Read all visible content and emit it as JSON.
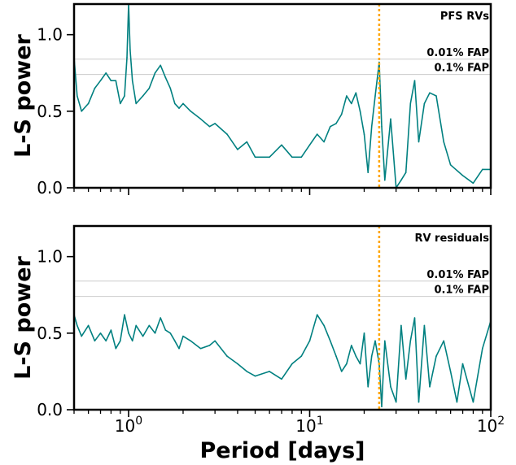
{
  "chart_data": {
    "type": "line",
    "xscale": "log",
    "xlim": [
      0.5,
      100
    ],
    "ylim": [
      0,
      1.2
    ],
    "xlabel": "Period [days]",
    "x_tick_labels": [
      {
        "value": 1,
        "base": "10",
        "exp": "0"
      },
      {
        "value": 10,
        "base": "10",
        "exp": "1"
      },
      {
        "value": 100,
        "base": "10",
        "exp": "2"
      }
    ],
    "y_ticks": [
      0.0,
      0.5,
      1.0
    ],
    "y_tick_labels": [
      "0.0",
      "0.5",
      "1.0"
    ],
    "colors": {
      "series": "#008080",
      "marker": "#ffa500",
      "fap": "#cccccc"
    },
    "panels": [
      {
        "id": "top",
        "ylabel": "L-S power",
        "annotation": "PFS RVs",
        "fap_lines": [
          {
            "label": "0.01% FAP",
            "value": 0.84
          },
          {
            "label": "0.1% FAP",
            "value": 0.74
          }
        ],
        "marker_period": 24.2,
        "series": {
          "x": [
            0.5,
            0.52,
            0.55,
            0.6,
            0.65,
            0.7,
            0.75,
            0.8,
            0.85,
            0.9,
            0.95,
            0.98,
            1.0,
            1.02,
            1.05,
            1.1,
            1.2,
            1.3,
            1.4,
            1.5,
            1.6,
            1.7,
            1.8,
            1.9,
            2.0,
            2.2,
            2.5,
            2.8,
            3.0,
            3.5,
            4.0,
            4.5,
            5.0,
            6.0,
            7.0,
            8.0,
            9.0,
            10.0,
            11.0,
            12.0,
            13.0,
            14.0,
            15.0,
            16.0,
            17.0,
            18.0,
            19.0,
            20.0,
            21.0,
            22.0,
            23.0,
            24.2,
            25.0,
            26.0,
            28.0,
            30.0,
            32.0,
            34.0,
            36.0,
            38.0,
            40.0,
            43.0,
            46.0,
            50.0,
            55.0,
            60.0,
            70.0,
            80.0,
            90.0,
            100.0
          ],
          "y": [
            0.85,
            0.6,
            0.5,
            0.55,
            0.65,
            0.7,
            0.75,
            0.7,
            0.7,
            0.55,
            0.6,
            0.85,
            1.2,
            0.9,
            0.7,
            0.55,
            0.6,
            0.65,
            0.75,
            0.8,
            0.72,
            0.65,
            0.55,
            0.52,
            0.55,
            0.5,
            0.45,
            0.4,
            0.42,
            0.35,
            0.25,
            0.3,
            0.2,
            0.2,
            0.28,
            0.2,
            0.2,
            0.28,
            0.35,
            0.3,
            0.4,
            0.42,
            0.48,
            0.6,
            0.55,
            0.62,
            0.5,
            0.35,
            0.1,
            0.4,
            0.6,
            0.82,
            0.4,
            0.05,
            0.45,
            0.0,
            0.05,
            0.1,
            0.55,
            0.7,
            0.3,
            0.55,
            0.62,
            0.6,
            0.3,
            0.15,
            0.08,
            0.03,
            0.12,
            0.12
          ]
        }
      },
      {
        "id": "bottom",
        "ylabel": "L-S power",
        "annotation": "RV residuals",
        "fap_lines": [
          {
            "label": "0.01% FAP",
            "value": 0.84
          },
          {
            "label": "0.1% FAP",
            "value": 0.74
          }
        ],
        "marker_period": 24.2,
        "series": {
          "x": [
            0.5,
            0.52,
            0.55,
            0.6,
            0.65,
            0.7,
            0.75,
            0.8,
            0.85,
            0.9,
            0.95,
            1.0,
            1.05,
            1.1,
            1.2,
            1.3,
            1.4,
            1.5,
            1.6,
            1.7,
            1.8,
            1.9,
            2.0,
            2.2,
            2.5,
            2.8,
            3.0,
            3.5,
            4.0,
            4.5,
            5.0,
            6.0,
            7.0,
            8.0,
            9.0,
            10.0,
            11.0,
            12.0,
            13.0,
            14.0,
            15.0,
            16.0,
            17.0,
            18.0,
            19.0,
            20.0,
            21.0,
            22.0,
            23.0,
            24.2,
            25.0,
            26.0,
            28.0,
            30.0,
            32.0,
            34.0,
            36.0,
            38.0,
            40.0,
            43.0,
            46.0,
            50.0,
            55.0,
            60.0,
            65.0,
            70.0,
            80.0,
            90.0,
            100.0
          ],
          "y": [
            0.62,
            0.55,
            0.48,
            0.55,
            0.45,
            0.5,
            0.45,
            0.52,
            0.4,
            0.45,
            0.62,
            0.5,
            0.45,
            0.55,
            0.48,
            0.55,
            0.5,
            0.6,
            0.52,
            0.5,
            0.45,
            0.4,
            0.48,
            0.45,
            0.4,
            0.42,
            0.45,
            0.35,
            0.3,
            0.25,
            0.22,
            0.25,
            0.2,
            0.3,
            0.35,
            0.45,
            0.62,
            0.55,
            0.45,
            0.35,
            0.25,
            0.3,
            0.42,
            0.35,
            0.3,
            0.5,
            0.15,
            0.35,
            0.45,
            0.3,
            0.02,
            0.45,
            0.15,
            0.05,
            0.55,
            0.2,
            0.45,
            0.6,
            0.05,
            0.55,
            0.15,
            0.35,
            0.45,
            0.25,
            0.05,
            0.3,
            0.05,
            0.4,
            0.58
          ]
        }
      }
    ]
  }
}
